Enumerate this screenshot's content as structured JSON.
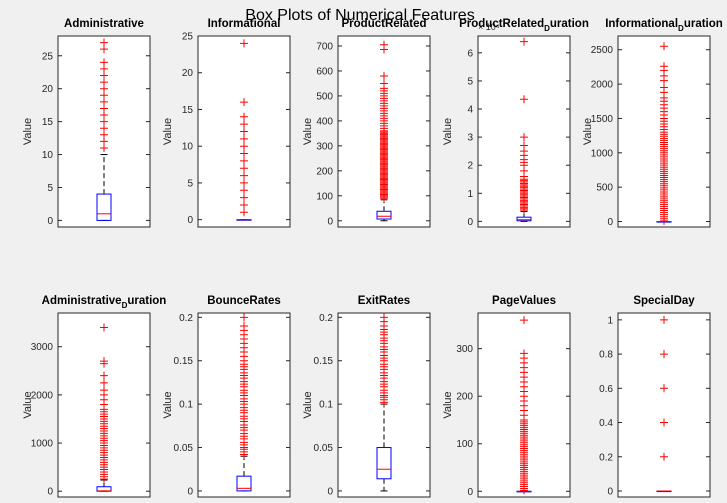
{
  "figure": {
    "suptitle": "Box Plots of Numerical Features",
    "colors": {
      "box": "#0000ff",
      "median": "#ff0000",
      "whisker": "#000000",
      "outlier": "#ff0000",
      "axes_bg": "#ffffff",
      "figure_bg": "#f0f0f0"
    }
  },
  "chart_data": [
    {
      "type": "box",
      "title": "Administrative",
      "ylabel": "Value",
      "ylim": [
        -1,
        28
      ],
      "yticks": [
        0,
        5,
        10,
        15,
        20,
        25
      ],
      "box": {
        "min": 0,
        "q1": 0,
        "median": 1,
        "q3": 4,
        "max": 10
      },
      "outliers": [
        11,
        12,
        13,
        14,
        15,
        16,
        17,
        18,
        19,
        20,
        21,
        22,
        23,
        24,
        26,
        27
      ]
    },
    {
      "type": "box",
      "title": "Informational",
      "ylabel": "Value",
      "ylim": [
        -1,
        25
      ],
      "yticks": [
        0,
        5,
        10,
        15,
        20,
        25
      ],
      "box": {
        "min": 0,
        "q1": 0,
        "median": 0,
        "q3": 0,
        "max": 0
      },
      "outliers": [
        1,
        2,
        3,
        4,
        5,
        6,
        7,
        8,
        9,
        10,
        11,
        12,
        13,
        14,
        16,
        24
      ]
    },
    {
      "type": "box",
      "title": "ProductRelated",
      "ylabel": "Value",
      "ylim": [
        -25,
        740
      ],
      "yticks": [
        0,
        100,
        200,
        300,
        400,
        500,
        600,
        700
      ],
      "box": {
        "min": 0,
        "q1": 7,
        "median": 18,
        "q3": 38,
        "max": 84
      },
      "outliers": [
        90,
        95,
        100,
        105,
        110,
        115,
        120,
        125,
        130,
        135,
        140,
        145,
        150,
        155,
        160,
        165,
        170,
        175,
        180,
        185,
        190,
        195,
        200,
        205,
        210,
        215,
        220,
        225,
        230,
        235,
        240,
        245,
        250,
        255,
        260,
        265,
        270,
        275,
        280,
        285,
        290,
        295,
        300,
        305,
        310,
        315,
        320,
        325,
        330,
        335,
        340,
        345,
        350,
        355,
        360,
        370,
        380,
        390,
        400,
        410,
        420,
        430,
        440,
        450,
        460,
        470,
        480,
        490,
        500,
        510,
        520,
        530,
        550,
        580,
        686,
        705
      ]
    },
    {
      "type": "box",
      "title": "ProductRelated",
      "title_sub": "D",
      "title_rest": "uration",
      "ylabel": "Value",
      "ylim": [
        -0.2,
        6.6
      ],
      "yticks": [
        0,
        1,
        2,
        3,
        4,
        5,
        6
      ],
      "y_exponent": "× 10⁴",
      "box": {
        "min": 0,
        "q1": 0.02,
        "median": 0.06,
        "q3": 0.15,
        "max": 0.35
      },
      "outliers": [
        0.4,
        0.45,
        0.5,
        0.55,
        0.6,
        0.65,
        0.7,
        0.75,
        0.8,
        0.85,
        0.9,
        0.95,
        1.0,
        1.05,
        1.1,
        1.15,
        1.2,
        1.25,
        1.3,
        1.35,
        1.4,
        1.45,
        1.5,
        1.6,
        1.8,
        2.0,
        2.1,
        2.2,
        2.35,
        2.5,
        2.7,
        3.0,
        4.35,
        6.4
      ]
    },
    {
      "type": "box",
      "title": "Informational",
      "title_sub": "D",
      "title_rest": "uration",
      "ylabel": "Value",
      "ylim": [
        -80,
        2700
      ],
      "yticks": [
        0,
        500,
        1000,
        1500,
        2000,
        2500
      ],
      "box": {
        "min": 0,
        "q1": 0,
        "median": 0,
        "q3": 0,
        "max": 0
      },
      "outliers": [
        10,
        40,
        70,
        100,
        130,
        160,
        190,
        220,
        250,
        280,
        310,
        340,
        370,
        400,
        430,
        460,
        490,
        520,
        550,
        580,
        610,
        640,
        670,
        700,
        730,
        760,
        790,
        820,
        850,
        880,
        910,
        940,
        970,
        1000,
        1030,
        1060,
        1090,
        1120,
        1150,
        1180,
        1210,
        1240,
        1270,
        1300,
        1340,
        1380,
        1420,
        1460,
        1500,
        1550,
        1600,
        1650,
        1700,
        1750,
        1800,
        1880,
        1950,
        2050,
        2120,
        2200,
        2260,
        2550
      ]
    },
    {
      "type": "box",
      "title": "Administrative",
      "title_sub": "D",
      "title_rest": "uration",
      "ylabel": "Value",
      "ylim": [
        -120,
        3700
      ],
      "yticks": [
        0,
        1000,
        2000,
        3000
      ],
      "box": {
        "min": 0,
        "q1": 0,
        "median": 8,
        "q3": 93,
        "max": 232
      },
      "outliers": [
        250,
        300,
        350,
        400,
        450,
        500,
        550,
        600,
        650,
        700,
        750,
        800,
        850,
        900,
        950,
        1000,
        1050,
        1100,
        1150,
        1200,
        1250,
        1300,
        1350,
        1400,
        1450,
        1500,
        1550,
        1600,
        1650,
        1700,
        1800,
        1900,
        2000,
        2100,
        2250,
        2400,
        2650,
        2700,
        3400
      ]
    },
    {
      "type": "box",
      "title": "BounceRates",
      "ylabel": "Value",
      "ylim": [
        -0.007,
        0.205
      ],
      "yticks": [
        0,
        0.05,
        0.1,
        0.15,
        0.2
      ],
      "box": {
        "min": 0,
        "q1": 0,
        "median": 0.003,
        "q3": 0.017,
        "max": 0.04
      },
      "outliers": [
        0.042,
        0.045,
        0.048,
        0.05,
        0.053,
        0.056,
        0.06,
        0.063,
        0.066,
        0.07,
        0.073,
        0.076,
        0.08,
        0.083,
        0.086,
        0.09,
        0.093,
        0.096,
        0.1,
        0.103,
        0.106,
        0.11,
        0.113,
        0.116,
        0.12,
        0.123,
        0.126,
        0.13,
        0.133,
        0.136,
        0.14,
        0.143,
        0.146,
        0.15,
        0.155,
        0.16,
        0.165,
        0.17,
        0.175,
        0.18,
        0.185,
        0.19,
        0.2
      ]
    },
    {
      "type": "box",
      "title": "ExitRates",
      "ylabel": "Value",
      "ylim": [
        -0.007,
        0.205
      ],
      "yticks": [
        0,
        0.05,
        0.1,
        0.15,
        0.2
      ],
      "box": {
        "min": 0,
        "q1": 0.014,
        "median": 0.025,
        "q3": 0.05,
        "max": 0.1
      },
      "outliers": [
        0.102,
        0.105,
        0.108,
        0.11,
        0.113,
        0.116,
        0.12,
        0.123,
        0.126,
        0.13,
        0.133,
        0.136,
        0.14,
        0.143,
        0.146,
        0.15,
        0.153,
        0.156,
        0.16,
        0.163,
        0.166,
        0.17,
        0.173,
        0.176,
        0.18,
        0.183,
        0.186,
        0.19,
        0.195,
        0.2
      ]
    },
    {
      "type": "box",
      "title": "PageValues",
      "ylabel": "Value",
      "ylim": [
        -12,
        375
      ],
      "yticks": [
        0,
        100,
        200,
        300
      ],
      "box": {
        "min": 0,
        "q1": 0,
        "median": 0,
        "q3": 0,
        "max": 0
      },
      "outliers": [
        2,
        6,
        10,
        14,
        18,
        22,
        26,
        30,
        34,
        38,
        42,
        46,
        50,
        54,
        58,
        62,
        66,
        70,
        74,
        78,
        82,
        86,
        90,
        94,
        98,
        102,
        106,
        110,
        114,
        118,
        122,
        126,
        130,
        134,
        138,
        142,
        146,
        150,
        160,
        170,
        180,
        190,
        200,
        210,
        220,
        230,
        240,
        250,
        260,
        270,
        280,
        290,
        360
      ]
    },
    {
      "type": "box",
      "title": "SpecialDay",
      "ylabel": "",
      "ylim": [
        -0.035,
        1.04
      ],
      "yticks": [
        0,
        0.2,
        0.4,
        0.6,
        0.8,
        1
      ],
      "box": {
        "min": 0,
        "q1": 0,
        "median": 0,
        "q3": 0,
        "max": 0
      },
      "outliers": [
        0.2,
        0.4,
        0.6,
        0.8,
        1.0
      ]
    }
  ]
}
